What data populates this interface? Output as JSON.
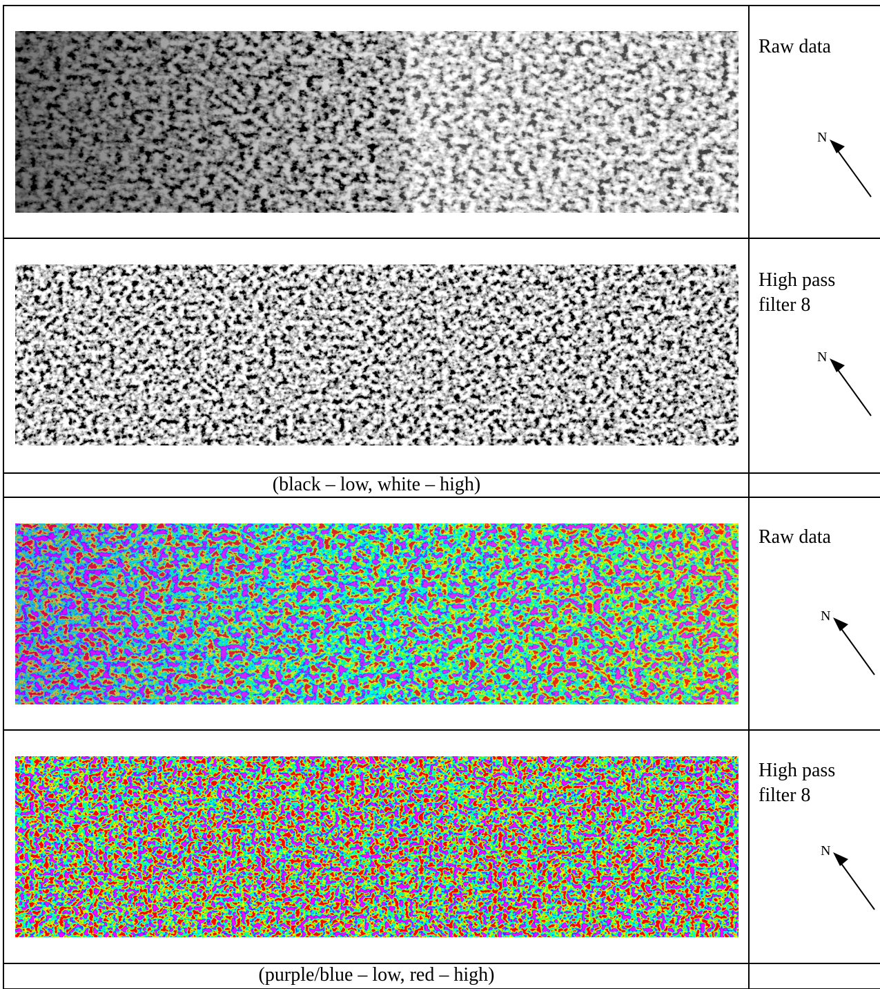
{
  "table": {
    "rows": [
      {
        "label": "Raw data",
        "north": "N"
      },
      {
        "label": "High pass filter 8",
        "north": "N"
      },
      {
        "caption": "(black – low, white – high)"
      },
      {
        "label": "Raw data",
        "north": "N"
      },
      {
        "label": "High pass filter 8",
        "north": "N"
      },
      {
        "caption": "(purple/blue – low, red – high)"
      }
    ]
  }
}
